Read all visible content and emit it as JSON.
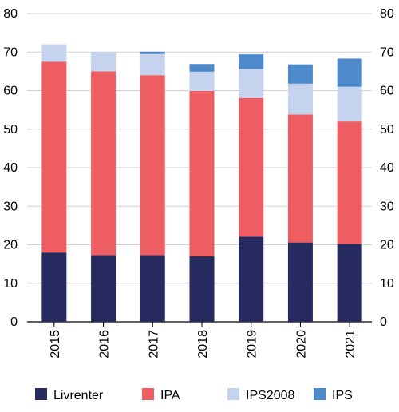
{
  "chart_data": {
    "type": "bar",
    "stacked": true,
    "categories": [
      "2015",
      "2016",
      "2017",
      "2018",
      "2019",
      "2020",
      "2021"
    ],
    "series": [
      {
        "name": "Livrenter",
        "color": "#262a5e",
        "values": [
          18.0,
          17.3,
          17.3,
          17.0,
          22.1,
          20.6,
          20.2
        ]
      },
      {
        "name": "IPA",
        "color": "#ee5d62",
        "values": [
          49.5,
          47.7,
          46.7,
          42.9,
          36.0,
          33.2,
          31.8
        ]
      },
      {
        "name": "IPS2008",
        "color": "#c5d3ef",
        "values": [
          4.5,
          5.0,
          5.5,
          5.0,
          7.5,
          8.0,
          9.0
        ]
      },
      {
        "name": "IPS",
        "color": "#4e89cc",
        "values": [
          0.0,
          0.0,
          0.6,
          2.0,
          3.8,
          5.0,
          7.3
        ]
      }
    ],
    "ylim": [
      0,
      80
    ],
    "yticks": [
      0,
      10,
      20,
      30,
      40,
      50,
      60,
      70,
      80
    ],
    "grid": true,
    "legend_position": "bottom",
    "title": "",
    "xlabel": "",
    "ylabel": ""
  }
}
